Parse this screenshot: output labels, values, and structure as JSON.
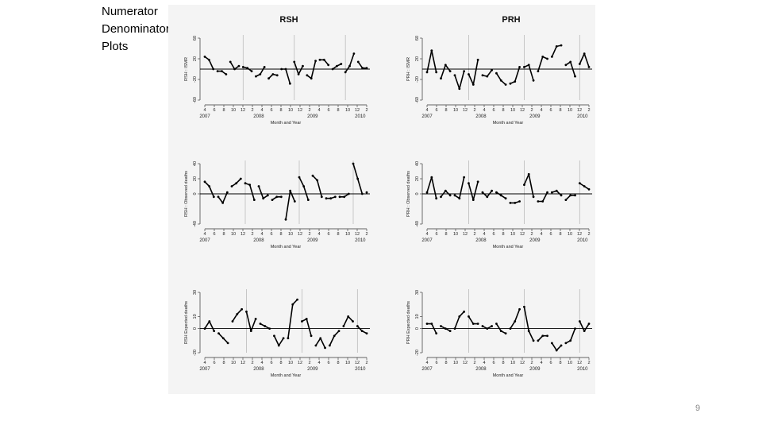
{
  "slide": {
    "title_lines": [
      "Numerator",
      "Denominator",
      "Plots"
    ],
    "page_number": "9"
  },
  "colors": {
    "series": "#000000",
    "zero_line": "#000000",
    "year_divider": "#bbbbbb",
    "axis": "#333333",
    "panel_bg": "#f4f4f4"
  },
  "chart_data": [
    {
      "type": "line",
      "column_title": "RSH",
      "ylabel": "RSH : ISMR",
      "xlabel": "Month and Year",
      "ylim": [
        -60,
        60
      ],
      "yticks": [
        "60",
        "20",
        "-20",
        "-60"
      ],
      "x_ticks": [
        "4",
        "6",
        "8",
        "10",
        "12",
        "2",
        "4",
        "6",
        "8",
        "10",
        "12",
        "2",
        "4",
        "6",
        "8",
        "10",
        "12",
        "2"
      ],
      "years": [
        "2007",
        "2008",
        "2009",
        "2010"
      ],
      "values": [
        24,
        18,
        0,
        -4,
        -4,
        -10,
        14,
        0,
        6,
        4,
        2,
        -4,
        -14,
        -10,
        4,
        -18,
        -10,
        -12,
        0,
        0,
        -28,
        14,
        -10,
        6,
        -12,
        -18,
        16,
        18,
        18,
        8,
        0,
        6,
        10,
        -6,
        6,
        30,
        14,
        2,
        2
      ]
    },
    {
      "type": "line",
      "column_title": "PRH",
      "ylabel": "PRH : ISMR",
      "xlabel": "Month and Year",
      "ylim": [
        -60,
        60
      ],
      "yticks": [
        "60",
        "20",
        "-20",
        "-60"
      ],
      "x_ticks": [
        "4",
        "6",
        "8",
        "10",
        "12",
        "2",
        "4",
        "6",
        "8",
        "10",
        "12",
        "2",
        "4",
        "6",
        "8",
        "10",
        "12",
        "2"
      ],
      "years": [
        "2007",
        "2008",
        "2009",
        "2010"
      ],
      "values": [
        -6,
        36,
        -6,
        -18,
        8,
        -4,
        -12,
        -38,
        -4,
        -10,
        -30,
        18,
        -12,
        -14,
        -2,
        -8,
        -22,
        -30,
        -28,
        -24,
        4,
        4,
        8,
        -22,
        -4,
        24,
        20,
        24,
        44,
        46,
        8,
        14,
        -14,
        10,
        30,
        4
      ]
    },
    {
      "type": "line",
      "ylabel": "RSH : Observed deaths",
      "xlabel": "Month and Year",
      "ylim": [
        -40,
        40
      ],
      "yticks": [
        "40",
        "20",
        "0",
        "-40"
      ],
      "x_ticks": [
        "4",
        "6",
        "8",
        "10",
        "12",
        "2",
        "4",
        "6",
        "8",
        "10",
        "12",
        "2",
        "4",
        "6",
        "8",
        "10",
        "12",
        "2"
      ],
      "years": [
        "2007",
        "2008",
        "2009",
        "2010"
      ],
      "values": [
        16,
        10,
        -4,
        -4,
        -12,
        2,
        10,
        14,
        20,
        14,
        12,
        -8,
        10,
        -6,
        -2,
        -8,
        -4,
        -4,
        -34,
        4,
        -10,
        22,
        10,
        -8,
        24,
        18,
        -4,
        -6,
        -6,
        -4,
        -4,
        -4,
        0,
        40,
        20,
        0,
        2
      ]
    },
    {
      "type": "line",
      "ylabel": "PRH : Observed deaths",
      "xlabel": "Month and Year",
      "ylim": [
        -40,
        40
      ],
      "yticks": [
        "40",
        "20",
        "0",
        "-40"
      ],
      "x_ticks": [
        "4",
        "6",
        "8",
        "10",
        "12",
        "2",
        "4",
        "6",
        "8",
        "10",
        "12",
        "2",
        "4",
        "6",
        "8",
        "10",
        "12",
        "2"
      ],
      "years": [
        "2007",
        "2008",
        "2009",
        "2010"
      ],
      "values": [
        2,
        22,
        -6,
        -4,
        4,
        -2,
        -2,
        -6,
        22,
        14,
        -8,
        16,
        2,
        -4,
        4,
        2,
        -2,
        -6,
        -12,
        -12,
        -10,
        12,
        26,
        -4,
        -10,
        -10,
        2,
        2,
        4,
        -2,
        -8,
        -2,
        -2,
        14,
        10,
        6
      ]
    },
    {
      "type": "line",
      "ylabel": "RSH Expected deaths",
      "xlabel": "Month and Year",
      "ylim": [
        -20,
        30
      ],
      "yticks": [
        "30",
        "10",
        "0",
        "-20"
      ],
      "x_ticks": [
        "4",
        "6",
        "8",
        "10",
        "12",
        "2",
        "4",
        "6",
        "8",
        "10",
        "12",
        "2",
        "4",
        "6",
        "8",
        "10",
        "12",
        "2"
      ],
      "years": [
        "2007",
        "2008",
        "2009",
        "2010"
      ],
      "values": [
        0,
        6,
        -2,
        -4,
        -8,
        -12,
        6,
        12,
        16,
        14,
        -2,
        8,
        4,
        2,
        0,
        -6,
        -14,
        -8,
        -8,
        20,
        24,
        6,
        8,
        -6,
        -14,
        -8,
        -16,
        -14,
        -6,
        -2,
        2,
        10,
        6,
        2,
        -2,
        -4
      ]
    },
    {
      "type": "line",
      "ylabel": "PRH Expected deaths",
      "xlabel": "Month and Year",
      "ylim": [
        -20,
        30
      ],
      "yticks": [
        "30",
        "10",
        "0",
        "-20"
      ],
      "x_ticks": [
        "4",
        "6",
        "8",
        "10",
        "12",
        "2",
        "4",
        "6",
        "8",
        "10",
        "12",
        "2",
        "4",
        "6",
        "8",
        "10",
        "12",
        "2"
      ],
      "years": [
        "2007",
        "2008",
        "2009",
        "2010"
      ],
      "values": [
        4,
        4,
        -4,
        2,
        0,
        -2,
        0,
        10,
        14,
        10,
        4,
        4,
        2,
        0,
        2,
        4,
        -2,
        -4,
        0,
        6,
        16,
        18,
        -2,
        -10,
        -10,
        -6,
        -6,
        -12,
        -18,
        -14,
        -12,
        -10,
        0,
        6,
        -2,
        4
      ]
    }
  ]
}
